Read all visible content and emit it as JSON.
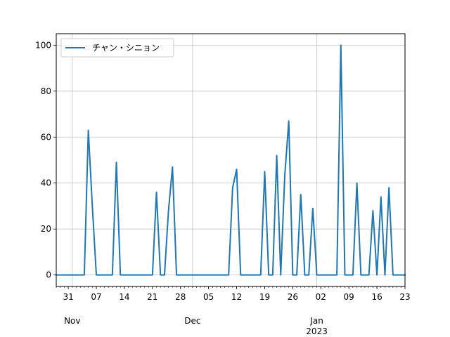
{
  "chart_data": {
    "type": "line",
    "title": "",
    "xlabel": "",
    "ylabel": "",
    "grid": true,
    "legend_position": "top-left",
    "color": "#1f77b4",
    "x_start": "2022-10-28",
    "x_end": "2023-01-23",
    "ylim": [
      -5,
      105
    ],
    "y_ticks": [
      "0",
      "20",
      "40",
      "60",
      "80",
      "100"
    ],
    "y_tick_values": [
      0,
      20,
      40,
      60,
      80,
      100
    ],
    "x_major_ticks": [
      {
        "date": "2022-10-31",
        "label": "31"
      },
      {
        "date": "2022-11-07",
        "label": "07"
      },
      {
        "date": "2022-11-14",
        "label": "14"
      },
      {
        "date": "2022-11-21",
        "label": "21"
      },
      {
        "date": "2022-11-28",
        "label": "28"
      },
      {
        "date": "2022-12-05",
        "label": "05"
      },
      {
        "date": "2022-12-12",
        "label": "12"
      },
      {
        "date": "2022-12-19",
        "label": "19"
      },
      {
        "date": "2022-12-26",
        "label": "26"
      },
      {
        "date": "2023-01-02",
        "label": "02"
      },
      {
        "date": "2023-01-09",
        "label": "09"
      },
      {
        "date": "2023-01-16",
        "label": "16"
      },
      {
        "date": "2023-01-23",
        "label": "23"
      }
    ],
    "x_group_labels": [
      {
        "date": "2022-11-01",
        "label": "Nov"
      },
      {
        "date": "2022-12-01",
        "label": "Dec"
      },
      {
        "date": "2023-01-01",
        "label": "Jan"
      }
    ],
    "x_year_label": {
      "date": "2023-01-01",
      "label": "2023"
    },
    "series": [
      {
        "name": "チャン・シニョン",
        "points": [
          [
            "2022-10-28",
            0
          ],
          [
            "2022-11-04",
            0
          ],
          [
            "2022-11-05",
            63
          ],
          [
            "2022-11-06",
            30
          ],
          [
            "2022-11-07",
            0
          ],
          [
            "2022-11-11",
            0
          ],
          [
            "2022-11-12",
            49
          ],
          [
            "2022-11-13",
            0
          ],
          [
            "2022-11-21",
            0
          ],
          [
            "2022-11-22",
            36
          ],
          [
            "2022-11-23",
            0
          ],
          [
            "2022-11-24",
            0
          ],
          [
            "2022-11-25",
            28
          ],
          [
            "2022-11-26",
            47
          ],
          [
            "2022-11-27",
            0
          ],
          [
            "2022-12-10",
            0
          ],
          [
            "2022-12-11",
            38
          ],
          [
            "2022-12-12",
            46
          ],
          [
            "2022-12-13",
            0
          ],
          [
            "2022-12-18",
            0
          ],
          [
            "2022-12-19",
            45
          ],
          [
            "2022-12-20",
            0
          ],
          [
            "2022-12-21",
            0
          ],
          [
            "2022-12-22",
            52
          ],
          [
            "2022-12-23",
            0
          ],
          [
            "2022-12-24",
            43
          ],
          [
            "2022-12-25",
            67
          ],
          [
            "2022-12-26",
            0
          ],
          [
            "2022-12-27",
            0
          ],
          [
            "2022-12-28",
            35
          ],
          [
            "2022-12-29",
            0
          ],
          [
            "2022-12-30",
            0
          ],
          [
            "2022-12-31",
            29
          ],
          [
            "2023-01-01",
            0
          ],
          [
            "2023-01-06",
            0
          ],
          [
            "2023-01-07",
            100
          ],
          [
            "2023-01-08",
            0
          ],
          [
            "2023-01-10",
            0
          ],
          [
            "2023-01-11",
            40
          ],
          [
            "2023-01-12",
            0
          ],
          [
            "2023-01-14",
            0
          ],
          [
            "2023-01-15",
            28
          ],
          [
            "2023-01-16",
            0
          ],
          [
            "2023-01-17",
            34
          ],
          [
            "2023-01-18",
            0
          ],
          [
            "2023-01-19",
            38
          ],
          [
            "2023-01-20",
            0
          ],
          [
            "2023-01-23",
            0
          ]
        ]
      }
    ]
  }
}
